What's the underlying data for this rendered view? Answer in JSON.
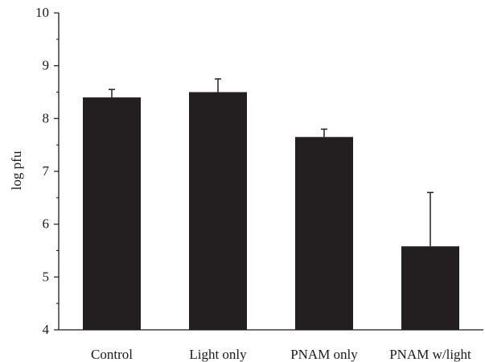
{
  "chart_data": {
    "type": "bar",
    "title": "",
    "xlabel": "",
    "ylabel": "log pfu",
    "categories": [
      "Control",
      "Light only",
      "PNAM only",
      "PNAM w/light"
    ],
    "values": [
      8.4,
      8.5,
      7.65,
      5.58
    ],
    "error_upper": [
      0.15,
      0.25,
      0.15,
      1.02
    ],
    "ylim": [
      4,
      10
    ],
    "yticks": [
      4,
      5,
      6,
      7,
      8,
      9,
      10
    ],
    "y_minor_step": 0.5,
    "grid": false,
    "legend": "none",
    "bar_color": "#231f20",
    "axis_color": "#1a1a1a"
  }
}
